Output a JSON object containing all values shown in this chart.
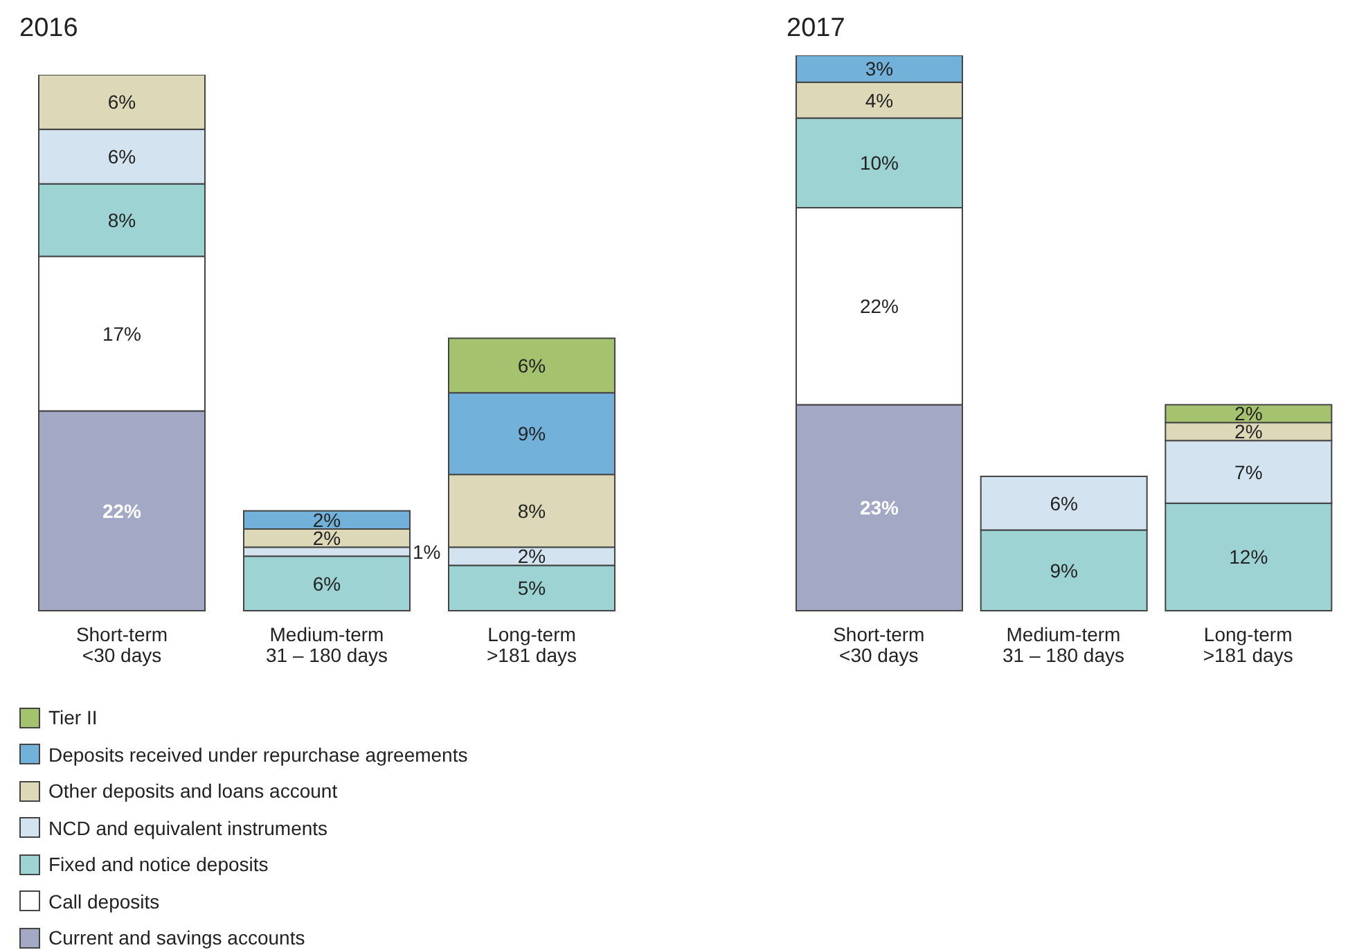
{
  "chart_data": [
    {
      "type": "bar",
      "title": "2016",
      "stacked": true,
      "legend": "bottom left",
      "categories": [
        "Short-term\n<30 days",
        "Medium-term\n31 – 180 days",
        "Long-term\n>181 days"
      ],
      "series": [
        {
          "name": "Current and savings accounts",
          "color": "#a3a8c4",
          "values": [
            22,
            null,
            null
          ],
          "value_labels": [
            "22%",
            null,
            null
          ]
        },
        {
          "name": "Call deposits",
          "color": "#ffffff",
          "values": [
            17,
            null,
            null
          ],
          "value_labels": [
            "17%",
            null,
            null
          ]
        },
        {
          "name": "Fixed and notice deposits",
          "color": "#9dd3d3",
          "values": [
            8,
            6,
            5
          ],
          "value_labels": [
            "8%",
            "6%",
            "5%"
          ]
        },
        {
          "name": "NCD and equivalent instruments",
          "color": "#d3e3f0",
          "values": [
            6,
            1,
            2
          ],
          "value_labels": [
            "6%",
            "1%",
            "2%"
          ]
        },
        {
          "name": "Other deposits and loans account",
          "color": "#ddd9b8",
          "values": [
            6,
            2,
            8
          ],
          "value_labels": [
            "6%",
            "2%",
            "8%"
          ]
        },
        {
          "name": "Deposits received under repurchase agreements",
          "color": "#72b2da",
          "values": [
            null,
            2,
            9
          ],
          "value_labels": [
            null,
            "2%",
            "9%"
          ]
        },
        {
          "name": "Tier II",
          "color": "#a5c26e",
          "values": [
            null,
            null,
            6
          ],
          "value_labels": [
            null,
            null,
            "6%"
          ]
        }
      ]
    },
    {
      "type": "bar",
      "title": "2017",
      "stacked": true,
      "categories": [
        "Short-term\n<30 days",
        "Medium-term\n31 – 180 days",
        "Long-term\n>181 days"
      ],
      "series": [
        {
          "color": "#a3a8c4",
          "values": [
            23,
            null,
            null
          ],
          "value_labels": [
            "23%",
            null,
            null
          ]
        },
        {
          "color": "#ffffff",
          "values": [
            22,
            null,
            null
          ],
          "value_labels": [
            "22%",
            null,
            null
          ]
        },
        {
          "color": "#9dd3d3",
          "values": [
            10,
            9,
            12
          ],
          "value_labels": [
            "10%",
            "9%",
            "12%"
          ]
        },
        {
          "color": "#d3e3f0",
          "values": [
            null,
            6,
            7
          ],
          "value_labels": [
            null,
            "6%",
            "7%"
          ]
        },
        {
          "color": "#ddd9b8",
          "values": [
            4,
            null,
            2
          ],
          "value_labels": [
            "4%",
            null,
            "2%"
          ]
        },
        {
          "color": "#72b2da",
          "values": [
            3,
            null,
            null
          ],
          "value_labels": [
            "3%",
            null,
            null
          ]
        },
        {
          "color": "#a5c26e",
          "values": [
            null,
            null,
            2
          ],
          "value_labels": [
            null,
            null,
            "2%"
          ]
        }
      ]
    }
  ]
}
